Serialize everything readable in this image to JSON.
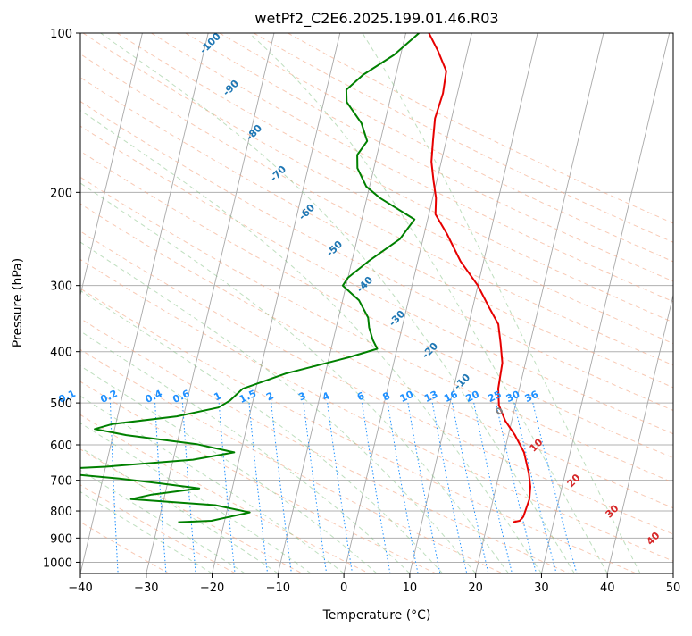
{
  "chart_data": {
    "type": "line",
    "title": "wetPf2_C2E6.2025.199.01.46.R03",
    "xlabel": "Temperature (°C)",
    "ylabel": "Pressure (hPa)",
    "xlim": [
      -40,
      50
    ],
    "ylim": [
      1050,
      100
    ],
    "y_scale": "log",
    "x_ticks": [
      -40,
      -30,
      -20,
      -10,
      0,
      10,
      20,
      30,
      40,
      50
    ],
    "y_ticks": [
      100,
      200,
      300,
      400,
      500,
      600,
      700,
      800,
      900,
      1000
    ],
    "grid": true,
    "skew": true,
    "series": [
      {
        "role": "temperature",
        "color": "#e60000",
        "points": [
          [
            23.8,
            840
          ],
          [
            24.8,
            835
          ],
          [
            25.2,
            820
          ],
          [
            25.5,
            760
          ],
          [
            25.2,
            720
          ],
          [
            24.5,
            680
          ],
          [
            23.0,
            620
          ],
          [
            21.0,
            575
          ],
          [
            19.0,
            540
          ],
          [
            17.5,
            505
          ],
          [
            16.8,
            470
          ],
          [
            16.5,
            420
          ],
          [
            15.5,
            385
          ],
          [
            14.5,
            355
          ],
          [
            12.5,
            330
          ],
          [
            10.0,
            300
          ],
          [
            6.5,
            270
          ],
          [
            3.5,
            240
          ],
          [
            1.0,
            220
          ],
          [
            0.5,
            205
          ],
          [
            -0.5,
            190
          ],
          [
            -1.5,
            175
          ],
          [
            -2.0,
            160
          ],
          [
            -2.5,
            145
          ],
          [
            -2.2,
            130
          ],
          [
            -2.5,
            118
          ],
          [
            -4.5,
            108
          ],
          [
            -6.5,
            100
          ]
        ]
      },
      {
        "role": "dewpoint",
        "color": "#008000",
        "points": [
          [
            -27,
            840
          ],
          [
            -22,
            835
          ],
          [
            -16.5,
            805
          ],
          [
            -22,
            780
          ],
          [
            -35,
            760
          ],
          [
            -32,
            745
          ],
          [
            -25,
            725
          ],
          [
            -31,
            710
          ],
          [
            -37.5,
            695
          ],
          [
            -43,
            685
          ],
          [
            -51,
            670
          ],
          [
            -40,
            660
          ],
          [
            -27,
            640
          ],
          [
            -21,
            620
          ],
          [
            -27,
            598
          ],
          [
            -38,
            575
          ],
          [
            -43,
            560
          ],
          [
            -40.5,
            548
          ],
          [
            -31,
            530
          ],
          [
            -25,
            510
          ],
          [
            -23.5,
            495
          ],
          [
            -22,
            470
          ],
          [
            -16,
            440
          ],
          [
            -7,
            410
          ],
          [
            -3,
            395
          ],
          [
            -4.0,
            380
          ],
          [
            -5.0,
            360
          ],
          [
            -5.5,
            345
          ],
          [
            -7.5,
            320
          ],
          [
            -10.5,
            300
          ],
          [
            -10.0,
            290
          ],
          [
            -7.5,
            270
          ],
          [
            -3.5,
            245
          ],
          [
            -2.0,
            225
          ],
          [
            -8.0,
            205
          ],
          [
            -10.5,
            195
          ],
          [
            -12.5,
            180
          ],
          [
            -13.0,
            170
          ],
          [
            -12.0,
            160
          ],
          [
            -13.5,
            148
          ],
          [
            -16.5,
            135
          ],
          [
            -17.0,
            128
          ],
          [
            -15.0,
            120
          ],
          [
            -11.0,
            110
          ],
          [
            -8.0,
            100
          ]
        ]
      }
    ],
    "dry_adiabat_labels": [
      "-100",
      "-90",
      "-80",
      "-70",
      "-60",
      "-50",
      "-40",
      "-30",
      "-20",
      "-10",
      "0"
    ],
    "moist_adiabat_labels": [
      "10",
      "20",
      "30",
      "40"
    ],
    "mixing_ratio_labels": [
      "0.1",
      "0.2",
      "0.4",
      "0.6",
      "1",
      "1.5",
      "2",
      "3",
      "4",
      "6",
      "8",
      "10",
      "13",
      "16",
      "20",
      "25",
      "30",
      "36"
    ]
  }
}
